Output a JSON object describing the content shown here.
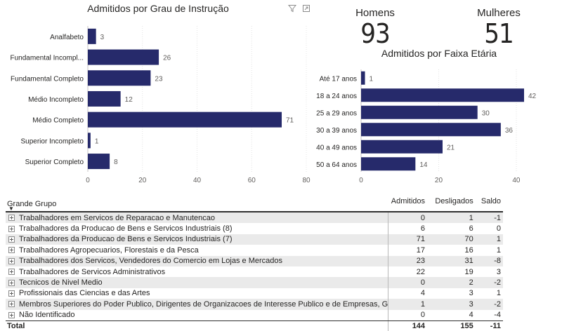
{
  "charts": {
    "grau": {
      "title": "Admitidos por Grau de Instrução",
      "categories": [
        "Analfabeto",
        "Fundamental Incompl...",
        "Fundamental Completo",
        "Médio Incompleto",
        "Médio Completo",
        "Superior Incompleto",
        "Superior Completo"
      ],
      "values": [
        3,
        26,
        23,
        12,
        71,
        1,
        8
      ],
      "xticks": [
        "0",
        "20",
        "40",
        "60",
        "80"
      ],
      "xlim": [
        0,
        80
      ],
      "color": "#262a6b"
    },
    "faixa": {
      "title": "Admitidos por Faixa Etária",
      "categories": [
        "Até 17 anos",
        "18 a 24 anos",
        "25 a 29 anos",
        "30 a 39 anos",
        "40 a 49 anos",
        "50 a 64 anos"
      ],
      "values": [
        1,
        42,
        30,
        36,
        21,
        14
      ],
      "xticks": [
        "0",
        "20",
        "40"
      ],
      "xlim": [
        0,
        42
      ],
      "color": "#262a6b"
    }
  },
  "chart_data": [
    {
      "type": "bar",
      "title": "Admitidos por Grau de Instrução",
      "categories": [
        "Analfabeto",
        "Fundamental Incompl...",
        "Fundamental Completo",
        "Médio Incompleto",
        "Médio Completo",
        "Superior Incompleto",
        "Superior Completo"
      ],
      "values": [
        3,
        26,
        23,
        12,
        71,
        1,
        8
      ],
      "xlim": [
        0,
        80
      ]
    },
    {
      "type": "bar",
      "title": "Admitidos por Faixa Etária",
      "categories": [
        "Até 17 anos",
        "18 a 24 anos",
        "25 a 29 anos",
        "30 a 39 anos",
        "40 a 49 anos",
        "50 a 64 anos"
      ],
      "values": [
        1,
        42,
        30,
        36,
        21,
        14
      ],
      "xlim": [
        0,
        42
      ]
    }
  ],
  "kpis": {
    "homens": {
      "label": "Homens",
      "value": "93"
    },
    "mulheres": {
      "label": "Mulheres",
      "value": "51"
    }
  },
  "table": {
    "headers": {
      "grupo": "Grande Grupo",
      "admitidos": "Admitidos",
      "desligados": "Desligados",
      "saldo": "Saldo"
    },
    "rows": [
      {
        "name": "Trabalhadores em Servicos de Reparacao e Manutencao",
        "admitidos": "0",
        "desligados": "1",
        "saldo": "-1"
      },
      {
        "name": "Trabalhadores da Producao de Bens e Servicos Industriais (8)",
        "admitidos": "6",
        "desligados": "6",
        "saldo": "0"
      },
      {
        "name": "Trabalhadores da Producao de Bens e Servicos Industriais (7)",
        "admitidos": "71",
        "desligados": "70",
        "saldo": "1"
      },
      {
        "name": "Trabalhadores Agropecuarios, Florestais e da Pesca",
        "admitidos": "17",
        "desligados": "16",
        "saldo": "1"
      },
      {
        "name": "Trabalhadores dos Servicos, Vendedores do Comercio em Lojas e Mercados",
        "admitidos": "23",
        "desligados": "31",
        "saldo": "-8"
      },
      {
        "name": "Trabalhadores de Servicos Administrativos",
        "admitidos": "22",
        "desligados": "19",
        "saldo": "3"
      },
      {
        "name": "Tecnicos de Nivel Medio",
        "admitidos": "0",
        "desligados": "2",
        "saldo": "-2"
      },
      {
        "name": "Profissionais das Ciencias e das Artes",
        "admitidos": "4",
        "desligados": "3",
        "saldo": "1"
      },
      {
        "name": "Membros Superiores do Poder Publico, Dirigentes de Organizacoes de Interesse Publico e de Empresas, Gerentes",
        "admitidos": "1",
        "desligados": "3",
        "saldo": "-2"
      },
      {
        "name": "Não Identificado",
        "admitidos": "0",
        "desligados": "4",
        "saldo": "-4"
      }
    ],
    "total": {
      "name": "Total",
      "admitidos": "144",
      "desligados": "155",
      "saldo": "-11"
    }
  }
}
